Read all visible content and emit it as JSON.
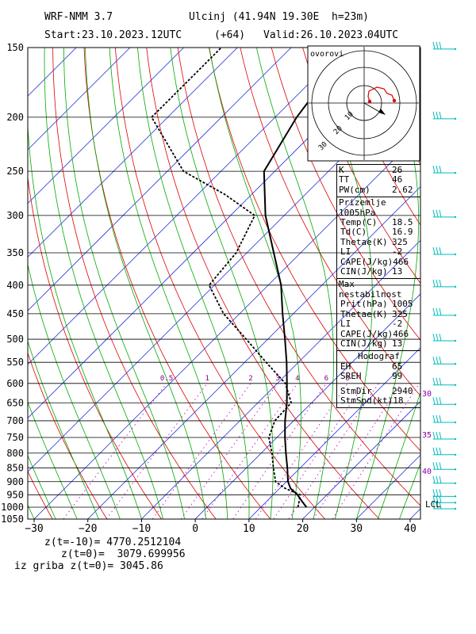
{
  "header": {
    "model": "WRF-NMM 3.7",
    "station": "Ulcinj (41.94N 19.30E  h=23m)",
    "start": "Start:23.10.2023.",
    "start_time": "12UTC",
    "lead": "(+64)",
    "valid": "Valid:26.10.2023.",
    "valid_time": "04UTC"
  },
  "chart_data": {
    "type": "line",
    "title": "",
    "xlabel": "",
    "ylabel": "",
    "x_ticks": [
      -30,
      -20,
      -10,
      0,
      10,
      20,
      30,
      40
    ],
    "p_ticks": [
      150,
      200,
      250,
      300,
      350,
      400,
      450,
      500,
      550,
      600,
      650,
      700,
      750,
      800,
      850,
      900,
      950,
      1000,
      1050
    ],
    "mixing_ratio_labels": [
      "0.5",
      "1",
      "2",
      "3",
      "4",
      "6",
      "8"
    ],
    "lcl_label": "LCL",
    "theta_labels": [
      "30",
      "35",
      "40"
    ],
    "series": [
      {
        "name": "",
        "kind": "temperature",
        "color": "#000000",
        "points": [
          {
            "p": 1000,
            "t": 18.5
          },
          {
            "p": 975,
            "t": 16.5
          },
          {
            "p": 950,
            "t": 14.5
          },
          {
            "p": 925,
            "t": 12.0
          },
          {
            "p": 900,
            "t": 10.3
          },
          {
            "p": 850,
            "t": 7.6
          },
          {
            "p": 800,
            "t": 4.6
          },
          {
            "p": 750,
            "t": 1.5
          },
          {
            "p": 700,
            "t": -1.6
          },
          {
            "p": 650,
            "t": -4.6
          },
          {
            "p": 600,
            "t": -8.2
          },
          {
            "p": 550,
            "t": -12.2
          },
          {
            "p": 500,
            "t": -16.8
          },
          {
            "p": 450,
            "t": -22.0
          },
          {
            "p": 400,
            "t": -27.6
          },
          {
            "p": 350,
            "t": -35.0
          },
          {
            "p": 300,
            "t": -43.5
          },
          {
            "p": 250,
            "t": -52.0
          },
          {
            "p": 200,
            "t": -56.0
          },
          {
            "p": 175,
            "t": -57.5
          },
          {
            "p": 150,
            "t": -58.8
          }
        ]
      },
      {
        "name": "",
        "kind": "dewpoint",
        "color": "#000000",
        "points": [
          {
            "p": 1000,
            "t": 16.9
          },
          {
            "p": 975,
            "t": 16.0
          },
          {
            "p": 950,
            "t": 15.0
          },
          {
            "p": 925,
            "t": 11.0
          },
          {
            "p": 900,
            "t": 8.0
          },
          {
            "p": 850,
            "t": 5.0
          },
          {
            "p": 800,
            "t": 2.0
          },
          {
            "p": 750,
            "t": -1.5
          },
          {
            "p": 700,
            "t": -3.5
          },
          {
            "p": 650,
            "t": -3.8
          },
          {
            "p": 600,
            "t": -8.5
          },
          {
            "p": 550,
            "t": -16.0
          },
          {
            "p": 500,
            "t": -24.0
          },
          {
            "p": 450,
            "t": -33.0
          },
          {
            "p": 400,
            "t": -41.0
          },
          {
            "p": 350,
            "t": -42.0
          },
          {
            "p": 300,
            "t": -45.5
          },
          {
            "p": 275,
            "t": -55.0
          },
          {
            "p": 250,
            "t": -67.0
          },
          {
            "p": 200,
            "t": -83.0
          },
          {
            "p": 175,
            "t": -83.0
          },
          {
            "p": 150,
            "t": -83.0
          }
        ]
      }
    ]
  },
  "hodograph": {
    "label": "ovorovi",
    "ring_labels": [
      "10",
      "20",
      "30",
      "40"
    ]
  },
  "indices": {
    "rows": [
      {
        "label": "K",
        "value": "26"
      },
      {
        "label": "TT",
        "value": "46"
      },
      {
        "label": "PW(cm)",
        "value": "2.62"
      }
    ]
  },
  "surface": {
    "title": "Prizemlje 1005hPa",
    "rows": [
      {
        "label": "Temp(C)",
        "value": "18.5"
      },
      {
        "label": "Td(C)",
        "value": "16.9"
      },
      {
        "label": "Thetae(K)",
        "value": "325"
      },
      {
        "label": "LI",
        "value": "-2"
      },
      {
        "label": "CAPE(J/kg)",
        "value": "466"
      },
      {
        "label": "CIN(J/kg)",
        "value": "13"
      }
    ]
  },
  "max_instability": {
    "title": "Max nestabilnost",
    "rows": [
      {
        "label": "Prit(hPa)",
        "value": "1005"
      },
      {
        "label": "Thetae(K)",
        "value": "325"
      },
      {
        "label": "LI",
        "value": "-2"
      },
      {
        "label": "CAPE(J/kg)",
        "value": "466"
      },
      {
        "label": "CIN(J/kg)",
        "value": "13"
      }
    ]
  },
  "hodograf_box": {
    "title": "Hodograf",
    "rows": [
      {
        "label": "EH",
        "value": "65"
      },
      {
        "label": "SREH",
        "value": "99"
      },
      {
        "label": "StmDir",
        "value": "2940"
      },
      {
        "label": "StmSpd(kt)",
        "value": "18"
      }
    ]
  },
  "footer": {
    "line1": "z(t=-10)= 4770.2512104",
    "line2": "z(t=0)=  3079.699956",
    "line3": "iz griba z(t=0)= 3045.86"
  },
  "colors": {
    "isotherm": "#2233dd",
    "dry_adiabat": "#dd0000",
    "moist_adiabat": "#00aa00",
    "mixing_ratio": "#cc00cc",
    "wind_barb": "#00bbbb",
    "frame": "#000000"
  }
}
